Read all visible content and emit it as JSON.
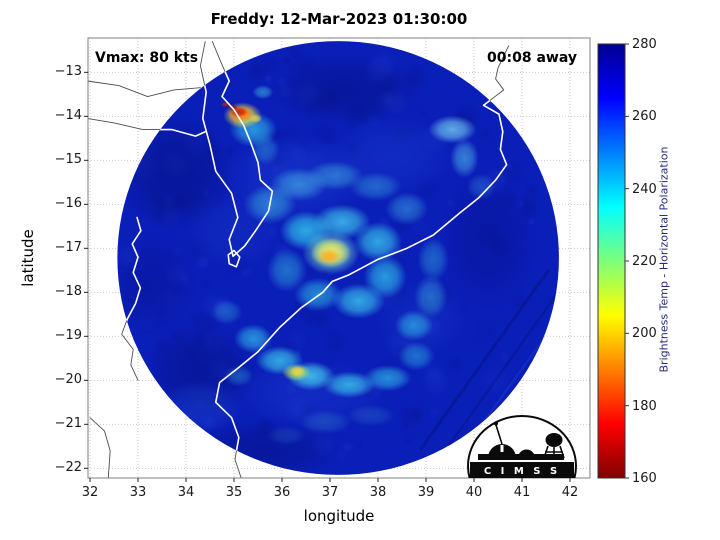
{
  "logo": {
    "text": "C I M S S"
  },
  "chart_data": {
    "type": "heatmap",
    "title": "Freddy: 12-Mar-2023 01:30:00",
    "xlabel": "longitude",
    "ylabel": "latitude",
    "annotations": {
      "vmax": "Vmax: 80 kts",
      "eta": "00:08 away"
    },
    "storm": {
      "name": "Freddy",
      "vmax_kts": 80,
      "datetime": "12-Mar-2023 01:30:00"
    },
    "xticks": [
      32,
      33,
      34,
      35,
      36,
      37,
      38,
      39,
      40,
      41,
      42
    ],
    "yticks": [
      -13,
      -14,
      -15,
      -16,
      -17,
      -18,
      -19,
      -20,
      -21,
      -22
    ],
    "lon_range": [
      31.958,
      42.417
    ],
    "lat_range": [
      -12.22,
      -22.22
    ],
    "grid": true,
    "colorbar": {
      "label": "Brightness Temp - Horizontal Polarization",
      "min": 160,
      "max": 280,
      "ticks": [
        280,
        260,
        240,
        220,
        200,
        180,
        160
      ],
      "gradient_top_to_bottom": [
        [
          0,
          "#000090"
        ],
        [
          0.125,
          "#0000ff"
        ],
        [
          0.375,
          "#00ffff"
        ],
        [
          0.5,
          "#7dff7a"
        ],
        [
          0.625,
          "#ffff00"
        ],
        [
          0.875,
          "#ff0000"
        ],
        [
          1,
          "#800000"
        ]
      ]
    },
    "swath": {
      "center_lon": 37.17,
      "center_lat": -17.22,
      "radius_lon_deg": 4.6,
      "radius_lat_deg": 4.93,
      "background_color": "#0a1eb8"
    },
    "texture": {
      "seed": 7,
      "count": 160
    },
    "features": [
      [
        36.3,
        -15.4,
        1.6,
        1.0,
        "#1c3ed0",
        0.5
      ],
      [
        38.3,
        -14.9,
        1.3,
        0.9,
        "#1c3ed0",
        0.4
      ],
      [
        35.0,
        -16.6,
        1.0,
        0.9,
        "#1a38c8",
        0.4
      ],
      [
        38.9,
        -18.6,
        1.0,
        0.9,
        "#1a38c8",
        0.35
      ],
      [
        36.6,
        -20.3,
        1.6,
        0.8,
        "#1c3ed0",
        0.4
      ],
      [
        33.8,
        -15.3,
        1.2,
        1.3,
        "#050f7a",
        0.5
      ],
      [
        34.3,
        -19.8,
        1.2,
        1.1,
        "#050f7a",
        0.45
      ],
      [
        40.3,
        -16.8,
        1.0,
        1.6,
        "#071290",
        0.45
      ],
      [
        37.3,
        -13.4,
        1.6,
        0.8,
        "#050f7a",
        0.45
      ],
      [
        35.6,
        -21.6,
        1.6,
        0.7,
        "#050f7a",
        0.45
      ],
      [
        33.3,
        -17.8,
        0.9,
        1.2,
        "#071290",
        0.4
      ],
      [
        34.3,
        -20.6,
        0.9,
        0.6,
        "#1c44cc",
        0.45
      ],
      [
        39.55,
        -14.3,
        0.5,
        0.32,
        "#6ec2ee",
        0.85
      ],
      [
        39.8,
        -14.95,
        0.3,
        0.45,
        "#4aa8e6",
        0.7
      ],
      [
        40.15,
        -15.6,
        0.3,
        0.3,
        "#2f7ad6",
        0.5
      ],
      [
        35.75,
        -16.0,
        0.55,
        0.45,
        "#3fb6e6",
        0.6
      ],
      [
        36.35,
        -15.55,
        0.6,
        0.38,
        "#49bce9",
        0.6
      ],
      [
        37.1,
        -15.35,
        0.6,
        0.33,
        "#41b2e4",
        0.55
      ],
      [
        37.95,
        -15.6,
        0.55,
        0.33,
        "#3aa8e0",
        0.5
      ],
      [
        38.6,
        -16.1,
        0.45,
        0.38,
        "#41b2e4",
        0.5
      ],
      [
        36.5,
        -16.6,
        0.55,
        0.45,
        "#35cdee",
        0.8
      ],
      [
        37.25,
        -16.4,
        0.6,
        0.4,
        "#45d8f2",
        0.75
      ],
      [
        38.0,
        -16.85,
        0.5,
        0.45,
        "#3bd2ef",
        0.75
      ],
      [
        38.15,
        -17.65,
        0.45,
        0.5,
        "#35cdee",
        0.7
      ],
      [
        37.6,
        -18.2,
        0.55,
        0.4,
        "#3fd4f0",
        0.75
      ],
      [
        36.75,
        -18.05,
        0.5,
        0.38,
        "#32c2e8",
        0.65
      ],
      [
        36.1,
        -17.5,
        0.42,
        0.5,
        "#2fa6da",
        0.6
      ],
      [
        37.02,
        -17.1,
        0.6,
        0.5,
        "#7ee8c8",
        0.8
      ],
      [
        37.02,
        -17.1,
        0.42,
        0.34,
        "#f2ef5d",
        0.95
      ],
      [
        36.98,
        -17.18,
        0.23,
        0.17,
        "#ffa81e",
        0.9
      ],
      [
        39.15,
        -17.25,
        0.33,
        0.5,
        "#2f9ad6",
        0.55
      ],
      [
        39.1,
        -18.1,
        0.35,
        0.5,
        "#37a6de",
        0.55
      ],
      [
        38.75,
        -18.75,
        0.4,
        0.35,
        "#35cdee",
        0.6
      ],
      [
        35.4,
        -19.05,
        0.4,
        0.33,
        "#35c8ec",
        0.65
      ],
      [
        35.95,
        -19.55,
        0.5,
        0.33,
        "#3fd4f0",
        0.75
      ],
      [
        36.6,
        -19.9,
        0.5,
        0.33,
        "#49daf2",
        0.8
      ],
      [
        37.4,
        -20.1,
        0.55,
        0.3,
        "#3fd4f0",
        0.75
      ],
      [
        38.2,
        -19.95,
        0.5,
        0.3,
        "#35c8ec",
        0.65
      ],
      [
        38.8,
        -19.45,
        0.38,
        0.33,
        "#2fb2e2",
        0.55
      ],
      [
        36.3,
        -19.82,
        0.3,
        0.2,
        "#c2e55e",
        0.85
      ],
      [
        36.32,
        -19.8,
        0.16,
        0.12,
        "#eed73d",
        0.9
      ],
      [
        34.85,
        -18.45,
        0.33,
        0.28,
        "#2f9ad6",
        0.45
      ],
      [
        35.1,
        -19.9,
        0.3,
        0.24,
        "#2f9ad6",
        0.45
      ],
      [
        36.9,
        -20.95,
        0.55,
        0.28,
        "#2a66cc",
        0.55
      ],
      [
        37.85,
        -20.8,
        0.5,
        0.25,
        "#2a66cc",
        0.45
      ],
      [
        36.1,
        -21.25,
        0.4,
        0.22,
        "#2554c4",
        0.45
      ],
      [
        35.4,
        -14.3,
        0.5,
        0.4,
        "#35c8ec",
        0.7
      ],
      [
        35.65,
        -14.75,
        0.3,
        0.35,
        "#2f9ad6",
        0.5
      ],
      [
        35.6,
        -13.45,
        0.22,
        0.16,
        "#3fb6e6",
        0.6
      ],
      [
        35.18,
        -13.98,
        0.4,
        0.3,
        "#eede3f",
        0.95
      ],
      [
        35.14,
        -13.95,
        0.27,
        0.18,
        "#ff7214",
        0.95
      ],
      [
        35.1,
        -13.9,
        0.19,
        0.12,
        "#cc1e0a",
        0.95
      ],
      [
        34.97,
        -13.8,
        0.11,
        0.08,
        "#8c150a",
        0.95
      ],
      [
        34.82,
        -13.73,
        0.1,
        0.06,
        "#b5240e",
        0.9
      ],
      [
        35.45,
        -14.05,
        0.14,
        0.1,
        "#e8d23a",
        0.8
      ]
    ],
    "streaks": [
      {
        "from": [
          38.9,
          -21.55
        ],
        "to": [
          41.55,
          -17.5
        ],
        "color": "#03106e",
        "alpha": 0.4,
        "width": 3
      },
      {
        "from": [
          39.5,
          -21.45
        ],
        "to": [
          41.85,
          -17.85
        ],
        "color": "#03106e",
        "alpha": 0.3,
        "width": 2.5
      },
      {
        "from": [
          40.1,
          -21.1
        ],
        "to": [
          41.95,
          -18.3
        ],
        "color": "#2a52d8",
        "alpha": 0.3,
        "width": 2
      }
    ],
    "coastlines": {
      "mozambique_coast": [
        [
          40.72,
          -12.4
        ],
        [
          40.5,
          -12.9
        ],
        [
          40.45,
          -13.15
        ],
        [
          40.62,
          -13.4
        ],
        [
          40.2,
          -13.75
        ],
        [
          40.52,
          -13.95
        ],
        [
          40.6,
          -14.35
        ],
        [
          40.55,
          -14.75
        ],
        [
          40.68,
          -15.1
        ],
        [
          40.45,
          -15.45
        ],
        [
          40.1,
          -15.85
        ],
        [
          39.7,
          -16.2
        ],
        [
          39.15,
          -16.7
        ],
        [
          38.6,
          -17.0
        ],
        [
          38.0,
          -17.25
        ],
        [
          37.4,
          -17.6
        ],
        [
          37.05,
          -17.75
        ],
        [
          36.85,
          -18.0
        ],
        [
          36.4,
          -18.35
        ],
        [
          35.95,
          -18.8
        ],
        [
          35.5,
          -19.35
        ],
        [
          35.05,
          -19.75
        ],
        [
          34.7,
          -20.05
        ],
        [
          34.62,
          -20.5
        ],
        [
          34.95,
          -20.85
        ],
        [
          35.1,
          -21.3
        ],
        [
          35.02,
          -21.8
        ],
        [
          35.15,
          -22.22
        ]
      ],
      "malawi_border_loop": [
        [
          34.55,
          -12.3
        ],
        [
          34.72,
          -12.75
        ],
        [
          34.9,
          -13.2
        ],
        [
          34.75,
          -13.55
        ],
        [
          35.0,
          -13.85
        ],
        [
          35.2,
          -14.2
        ],
        [
          35.35,
          -14.6
        ],
        [
          35.5,
          -15.05
        ],
        [
          35.55,
          -15.45
        ],
        [
          35.8,
          -15.7
        ],
        [
          35.72,
          -16.15
        ],
        [
          35.45,
          -16.6
        ],
        [
          35.22,
          -16.95
        ],
        [
          34.98,
          -17.18
        ],
        [
          34.9,
          -16.8
        ],
        [
          35.08,
          -16.3
        ],
        [
          34.95,
          -15.75
        ],
        [
          34.62,
          -15.25
        ],
        [
          34.5,
          -14.65
        ],
        [
          34.35,
          -14.05
        ],
        [
          34.42,
          -13.45
        ],
        [
          34.3,
          -12.85
        ],
        [
          34.4,
          -12.3
        ]
      ],
      "small_loop": [
        [
          35.0,
          -17.05
        ],
        [
          35.12,
          -17.2
        ],
        [
          35.05,
          -17.42
        ],
        [
          34.9,
          -17.35
        ],
        [
          34.88,
          -17.15
        ],
        [
          35.0,
          -17.05
        ]
      ],
      "zimbabwe_border": [
        [
          32.98,
          -16.3
        ],
        [
          33.06,
          -16.6
        ],
        [
          32.88,
          -16.9
        ],
        [
          33.0,
          -17.2
        ],
        [
          32.9,
          -17.55
        ],
        [
          33.05,
          -17.9
        ],
        [
          32.95,
          -18.25
        ],
        [
          32.78,
          -18.6
        ],
        [
          32.66,
          -18.95
        ],
        [
          32.9,
          -19.3
        ],
        [
          32.85,
          -19.65
        ],
        [
          33.0,
          -20.0
        ]
      ],
      "north_border_a": [
        [
          31.96,
          -14.05
        ],
        [
          32.5,
          -14.15
        ],
        [
          33.1,
          -14.3
        ],
        [
          33.7,
          -14.3
        ],
        [
          34.2,
          -14.45
        ],
        [
          34.4,
          -14.35
        ]
      ],
      "north_border_b": [
        [
          31.96,
          -13.2
        ],
        [
          32.6,
          -13.3
        ],
        [
          33.2,
          -13.55
        ],
        [
          33.75,
          -13.4
        ],
        [
          34.3,
          -13.35
        ]
      ],
      "southwest_border": [
        [
          32.0,
          -20.85
        ],
        [
          32.3,
          -21.15
        ],
        [
          32.42,
          -21.6
        ],
        [
          32.38,
          -22.22
        ]
      ]
    }
  }
}
